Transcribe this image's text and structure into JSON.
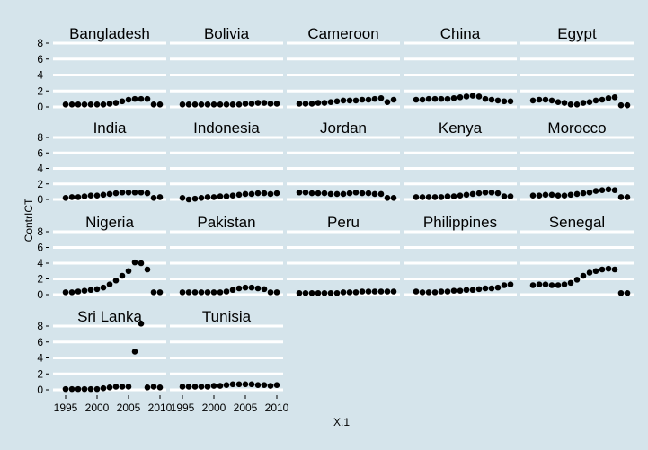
{
  "chart_data": {
    "type": "scatter",
    "facet_layout": "wrap",
    "ncol": 5,
    "xlabel": "X.1",
    "ylabel": "ContrICT",
    "xlim": [
      1993,
      2011
    ],
    "ylim": [
      0,
      9
    ],
    "x_ticks": [
      1995,
      2000,
      2005,
      2010
    ],
    "x_tick_labels": [
      "1995",
      "2000",
      "2005",
      "2010"
    ],
    "y_ticks": [
      0,
      2,
      4,
      6,
      8
    ],
    "y_tick_labels": [
      "0",
      "2",
      "4",
      "6",
      "8"
    ],
    "grid": true,
    "colors": {
      "background": "#d5e4eb",
      "grid": "#ffffff",
      "point": "#000000"
    },
    "panels": [
      {
        "name": "Bangladesh",
        "x": [
          1995,
          1996,
          1997,
          1998,
          1999,
          2000,
          2001,
          2002,
          2003,
          2004,
          2005,
          2006,
          2007,
          2008,
          2009,
          2010
        ],
        "y": [
          0.3,
          0.3,
          0.3,
          0.3,
          0.3,
          0.3,
          0.3,
          0.4,
          0.5,
          0.7,
          0.9,
          1.0,
          1.0,
          1.0,
          0.3,
          0.3
        ]
      },
      {
        "name": "Bolivia",
        "x": [
          1995,
          1996,
          1997,
          1998,
          1999,
          2000,
          2001,
          2002,
          2003,
          2004,
          2005,
          2006,
          2007,
          2008,
          2009,
          2010
        ],
        "y": [
          0.3,
          0.3,
          0.3,
          0.3,
          0.3,
          0.3,
          0.3,
          0.3,
          0.3,
          0.3,
          0.4,
          0.4,
          0.5,
          0.5,
          0.4,
          0.4
        ]
      },
      {
        "name": "Cameroon",
        "x": [
          1995,
          1996,
          1997,
          1998,
          1999,
          2000,
          2001,
          2002,
          2003,
          2004,
          2005,
          2006,
          2007,
          2008,
          2009,
          2010
        ],
        "y": [
          0.4,
          0.4,
          0.4,
          0.5,
          0.5,
          0.6,
          0.7,
          0.8,
          0.8,
          0.8,
          0.9,
          0.9,
          1.0,
          1.1,
          0.6,
          0.9
        ]
      },
      {
        "name": "China",
        "x": [
          1995,
          1996,
          1997,
          1998,
          1999,
          2000,
          2001,
          2002,
          2003,
          2004,
          2005,
          2006,
          2007,
          2008,
          2009,
          2010
        ],
        "y": [
          0.9,
          0.9,
          1.0,
          1.0,
          1.0,
          1.0,
          1.1,
          1.2,
          1.3,
          1.4,
          1.3,
          1.0,
          0.9,
          0.8,
          0.7,
          0.7
        ]
      },
      {
        "name": "Egypt",
        "x": [
          1995,
          1996,
          1997,
          1998,
          1999,
          2000,
          2001,
          2002,
          2003,
          2004,
          2005,
          2006,
          2007,
          2008,
          2009,
          2010
        ],
        "y": [
          0.8,
          0.9,
          0.9,
          0.8,
          0.6,
          0.5,
          0.3,
          0.3,
          0.5,
          0.6,
          0.8,
          0.9,
          1.1,
          1.2,
          0.2,
          0.2
        ]
      },
      {
        "name": "India",
        "x": [
          1995,
          1996,
          1997,
          1998,
          1999,
          2000,
          2001,
          2002,
          2003,
          2004,
          2005,
          2006,
          2007,
          2008,
          2009,
          2010
        ],
        "y": [
          0.2,
          0.3,
          0.3,
          0.4,
          0.5,
          0.5,
          0.6,
          0.7,
          0.8,
          0.9,
          0.9,
          0.9,
          0.9,
          0.8,
          0.2,
          0.3
        ]
      },
      {
        "name": "Indonesia",
        "x": [
          1995,
          1996,
          1997,
          1998,
          1999,
          2000,
          2001,
          2002,
          2003,
          2004,
          2005,
          2006,
          2007,
          2008,
          2009,
          2010
        ],
        "y": [
          0.2,
          0.0,
          0.1,
          0.2,
          0.3,
          0.3,
          0.4,
          0.4,
          0.5,
          0.6,
          0.7,
          0.7,
          0.8,
          0.8,
          0.7,
          0.8
        ]
      },
      {
        "name": "Jordan",
        "x": [
          1995,
          1996,
          1997,
          1998,
          1999,
          2000,
          2001,
          2002,
          2003,
          2004,
          2005,
          2006,
          2007,
          2008,
          2009,
          2010
        ],
        "y": [
          0.9,
          0.9,
          0.8,
          0.8,
          0.8,
          0.7,
          0.7,
          0.7,
          0.8,
          0.9,
          0.8,
          0.8,
          0.7,
          0.7,
          0.2,
          0.2
        ]
      },
      {
        "name": "Kenya",
        "x": [
          1995,
          1996,
          1997,
          1998,
          1999,
          2000,
          2001,
          2002,
          2003,
          2004,
          2005,
          2006,
          2007,
          2008,
          2009,
          2010
        ],
        "y": [
          0.3,
          0.3,
          0.3,
          0.3,
          0.3,
          0.4,
          0.4,
          0.5,
          0.6,
          0.7,
          0.8,
          0.9,
          0.9,
          0.8,
          0.4,
          0.4
        ]
      },
      {
        "name": "Morocco",
        "x": [
          1995,
          1996,
          1997,
          1998,
          1999,
          2000,
          2001,
          2002,
          2003,
          2004,
          2005,
          2006,
          2007,
          2008,
          2009,
          2010
        ],
        "y": [
          0.5,
          0.5,
          0.6,
          0.6,
          0.5,
          0.5,
          0.6,
          0.7,
          0.8,
          0.9,
          1.1,
          1.2,
          1.3,
          1.2,
          0.3,
          0.3
        ]
      },
      {
        "name": "Nigeria",
        "x": [
          1995,
          1996,
          1997,
          1998,
          1999,
          2000,
          2001,
          2002,
          2003,
          2004,
          2005,
          2006,
          2007,
          2008,
          2009,
          2010
        ],
        "y": [
          0.3,
          0.3,
          0.4,
          0.5,
          0.6,
          0.7,
          0.9,
          1.3,
          1.8,
          2.4,
          3.0,
          4.1,
          4.0,
          3.2,
          0.3,
          0.3
        ]
      },
      {
        "name": "Pakistan",
        "x": [
          1995,
          1996,
          1997,
          1998,
          1999,
          2000,
          2001,
          2002,
          2003,
          2004,
          2005,
          2006,
          2007,
          2008,
          2009,
          2010
        ],
        "y": [
          0.3,
          0.3,
          0.3,
          0.3,
          0.3,
          0.3,
          0.3,
          0.4,
          0.6,
          0.8,
          0.9,
          0.9,
          0.8,
          0.7,
          0.3,
          0.3
        ]
      },
      {
        "name": "Peru",
        "x": [
          1995,
          1996,
          1997,
          1998,
          1999,
          2000,
          2001,
          2002,
          2003,
          2004,
          2005,
          2006,
          2007,
          2008,
          2009,
          2010
        ],
        "y": [
          0.2,
          0.2,
          0.2,
          0.2,
          0.2,
          0.2,
          0.2,
          0.3,
          0.3,
          0.3,
          0.4,
          0.4,
          0.4,
          0.4,
          0.4,
          0.4
        ]
      },
      {
        "name": "Philippines",
        "x": [
          1995,
          1996,
          1997,
          1998,
          1999,
          2000,
          2001,
          2002,
          2003,
          2004,
          2005,
          2006,
          2007,
          2008,
          2009,
          2010
        ],
        "y": [
          0.4,
          0.3,
          0.3,
          0.3,
          0.4,
          0.4,
          0.5,
          0.5,
          0.6,
          0.6,
          0.7,
          0.8,
          0.8,
          0.9,
          1.2,
          1.3
        ]
      },
      {
        "name": "Senegal",
        "x": [
          1995,
          1996,
          1997,
          1998,
          1999,
          2000,
          2001,
          2002,
          2003,
          2004,
          2005,
          2006,
          2007,
          2008,
          2009,
          2010
        ],
        "y": [
          1.2,
          1.3,
          1.3,
          1.2,
          1.2,
          1.3,
          1.5,
          1.9,
          2.4,
          2.8,
          3.0,
          3.2,
          3.3,
          3.2,
          0.2,
          0.2
        ]
      },
      {
        "name": "Sri Lanka",
        "x": [
          1995,
          1996,
          1997,
          1998,
          1999,
          2000,
          2001,
          2002,
          2003,
          2004,
          2005,
          2006,
          2007,
          2008,
          2009,
          2010
        ],
        "y": [
          0.1,
          0.1,
          0.1,
          0.1,
          0.1,
          0.1,
          0.2,
          0.3,
          0.4,
          0.4,
          0.4,
          4.8,
          8.3,
          0.3,
          0.4,
          0.3
        ]
      },
      {
        "name": "Tunisia",
        "x": [
          1995,
          1996,
          1997,
          1998,
          1999,
          2000,
          2001,
          2002,
          2003,
          2004,
          2005,
          2006,
          2007,
          2008,
          2009,
          2010
        ],
        "y": [
          0.4,
          0.4,
          0.4,
          0.4,
          0.4,
          0.5,
          0.5,
          0.6,
          0.7,
          0.7,
          0.7,
          0.7,
          0.6,
          0.6,
          0.5,
          0.6
        ]
      }
    ]
  }
}
